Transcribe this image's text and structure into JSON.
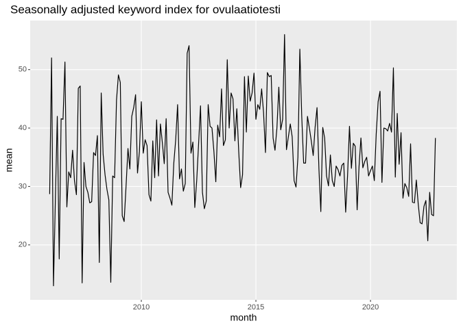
{
  "chart_data": {
    "type": "line",
    "title": "Seasonally adjusted keyword index for ovulaatiotesti",
    "x_label": "month",
    "y_label": "mean",
    "color": "#000000",
    "grid": true,
    "xlim": [
      2005.15,
      2023.77
    ],
    "xticks": [
      2010,
      2015,
      2020
    ],
    "ylim": [
      10.6,
      58.4
    ],
    "yticks": [
      20,
      30,
      40,
      50
    ],
    "x": [
      2006,
      2006.083,
      2006.167,
      2006.25,
      2006.333,
      2006.417,
      2006.5,
      2006.583,
      2006.667,
      2006.75,
      2006.833,
      2006.917,
      2007,
      2007.083,
      2007.167,
      2007.25,
      2007.333,
      2007.417,
      2007.5,
      2007.583,
      2007.667,
      2007.75,
      2007.833,
      2007.917,
      2008,
      2008.083,
      2008.167,
      2008.25,
      2008.333,
      2008.417,
      2008.5,
      2008.583,
      2008.667,
      2008.75,
      2008.833,
      2008.917,
      2009,
      2009.083,
      2009.167,
      2009.25,
      2009.333,
      2009.417,
      2009.5,
      2009.583,
      2009.667,
      2009.75,
      2009.833,
      2009.917,
      2010,
      2010.083,
      2010.167,
      2010.25,
      2010.333,
      2010.417,
      2010.5,
      2010.583,
      2010.667,
      2010.75,
      2010.833,
      2010.917,
      2011,
      2011.083,
      2011.167,
      2011.25,
      2011.333,
      2011.417,
      2011.5,
      2011.583,
      2011.667,
      2011.75,
      2011.833,
      2011.917,
      2012,
      2012.083,
      2012.167,
      2012.25,
      2012.333,
      2012.417,
      2012.5,
      2012.583,
      2012.667,
      2012.75,
      2012.833,
      2012.917,
      2013,
      2013.083,
      2013.167,
      2013.25,
      2013.333,
      2013.417,
      2013.5,
      2013.583,
      2013.667,
      2013.75,
      2013.833,
      2013.917,
      2014,
      2014.083,
      2014.167,
      2014.25,
      2014.333,
      2014.417,
      2014.5,
      2014.583,
      2014.667,
      2014.75,
      2014.833,
      2014.917,
      2015,
      2015.083,
      2015.167,
      2015.25,
      2015.333,
      2015.417,
      2015.5,
      2015.583,
      2015.667,
      2015.75,
      2015.833,
      2015.917,
      2016,
      2016.083,
      2016.167,
      2016.25,
      2016.333,
      2016.417,
      2016.5,
      2016.583,
      2016.667,
      2016.75,
      2016.833,
      2016.917,
      2017,
      2017.083,
      2017.167,
      2017.25,
      2017.333,
      2017.417,
      2017.5,
      2017.583,
      2017.667,
      2017.75,
      2017.833,
      2017.917,
      2018,
      2018.083,
      2018.167,
      2018.25,
      2018.333,
      2018.417,
      2018.5,
      2018.583,
      2018.667,
      2018.75,
      2018.833,
      2018.917,
      2019,
      2019.083,
      2019.167,
      2019.25,
      2019.333,
      2019.417,
      2019.5,
      2019.583,
      2019.667,
      2019.75,
      2019.833,
      2019.917,
      2020,
      2020.083,
      2020.167,
      2020.25,
      2020.333,
      2020.417,
      2020.5,
      2020.583,
      2020.667,
      2020.75,
      2020.833,
      2020.917,
      2021,
      2021.083,
      2021.167,
      2021.25,
      2021.333,
      2021.417,
      2021.5,
      2021.583,
      2021.667,
      2021.75,
      2021.833,
      2021.917,
      2022,
      2022.083,
      2022.167,
      2022.25,
      2022.333,
      2022.417,
      2022.5,
      2022.583,
      2022.667,
      2022.75,
      2022.833
    ],
    "values": [
      28.7,
      52,
      13,
      28,
      42,
      17.6,
      41.6,
      41.5,
      51.3,
      26.5,
      32.5,
      31.5,
      36.2,
      31,
      28.6,
      46.8,
      47.2,
      13.5,
      34.1,
      30,
      29,
      27.2,
      27.4,
      35.8,
      35.3,
      38.7,
      17,
      46,
      35.5,
      32,
      29.5,
      27.7,
      13.6,
      31.8,
      31.5,
      44.8,
      49.1,
      47.8,
      25,
      24,
      30,
      36.5,
      33,
      42,
      43.5,
      45.7,
      32.3,
      36,
      44.5,
      35.7,
      38,
      37,
      28.6,
      27.5,
      37.8,
      31.5,
      41.4,
      31.8,
      40.7,
      37.5,
      33.9,
      41.6,
      29,
      28,
      26.8,
      34,
      38,
      44,
      31.3,
      33,
      29.2,
      30.5,
      52.8,
      54.1,
      35.7,
      37.6,
      26.4,
      31,
      37.4,
      43.8,
      29,
      26.2,
      27.5,
      44,
      40.3,
      40,
      36,
      30.8,
      40.5,
      38.5,
      46.7,
      37,
      38,
      51.7,
      40,
      46,
      45,
      37.8,
      43.3,
      36,
      29.8,
      32,
      48.8,
      39.3,
      48.9,
      44.6,
      46,
      49.4,
      41.5,
      44,
      43.2,
      46.7,
      42.7,
      35.8,
      49.5,
      48.8,
      49,
      38.3,
      36.2,
      40,
      47,
      39.7,
      41.5,
      56,
      36.3,
      38.5,
      40.7,
      38.5,
      31,
      29.9,
      35,
      53.5,
      42,
      34,
      34,
      42,
      40,
      37.8,
      35.3,
      40.1,
      43.5,
      33,
      25.7,
      40.1,
      38.3,
      31.8,
      30.1,
      35.4,
      31,
      30,
      33.5,
      32.9,
      31.8,
      33.6,
      34,
      25.6,
      31.9,
      40.3,
      33.1,
      37.4,
      36.9,
      26,
      33.4,
      38.3,
      33.2,
      34.3,
      35,
      31.8,
      32.7,
      33.5,
      31,
      39,
      44.5,
      46.3,
      30.7,
      40,
      39.9,
      39.5,
      40.8,
      39.3,
      50.3,
      31.6,
      42.5,
      33.8,
      39.2,
      28,
      30.5,
      29.8,
      28.3,
      37.3,
      27.3,
      27.2,
      31.1,
      27,
      23.8,
      23.6,
      26.6,
      27.6,
      20.7,
      29,
      25.2,
      25,
      38.3
    ]
  }
}
